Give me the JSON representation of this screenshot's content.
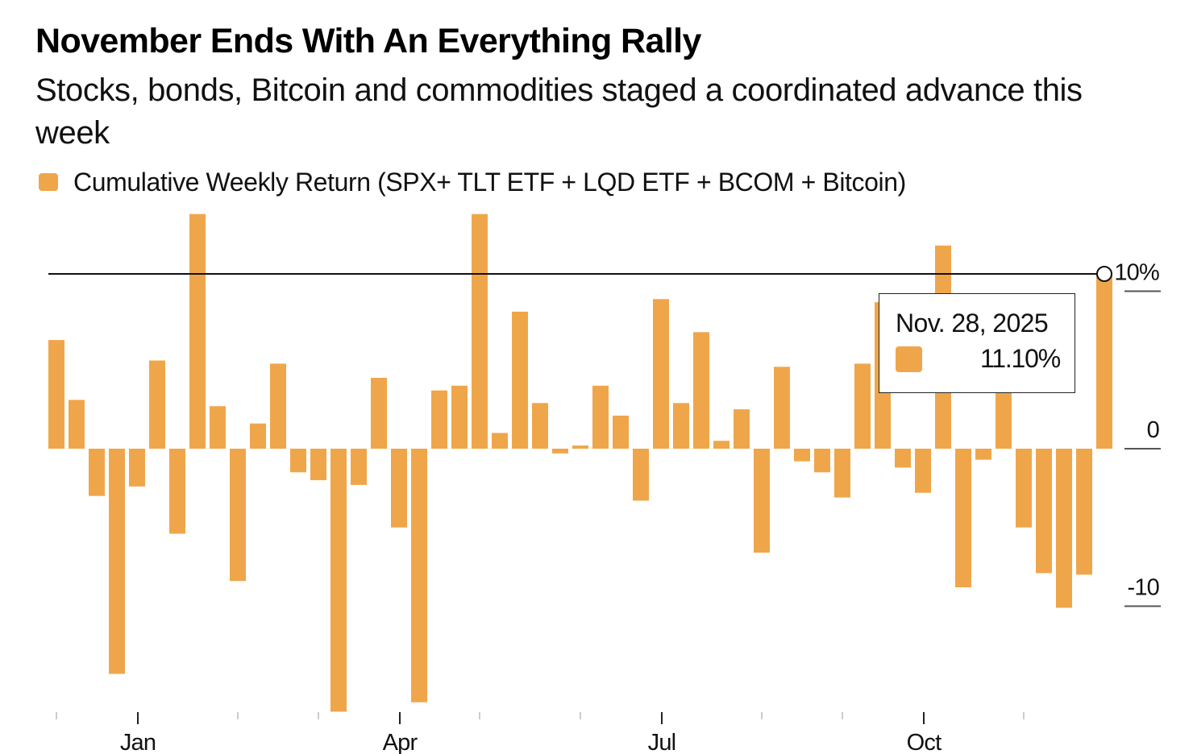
{
  "colors": {
    "bar": "#EFA64A",
    "reference_line": "#111111",
    "axis": "#222222",
    "minor_tick": "#bbbbbb"
  },
  "chart_data": {
    "type": "bar",
    "title": "November Ends With An Everything Rally",
    "subtitle": "Stocks, bonds, Bitcoin and commodities staged a coordinated advance this week",
    "legend": [
      {
        "name": "Cumulative Weekly Return (SPX+ TLT ETF + LQD ETF + BCOM + Bitcoin)",
        "color": "#EFA64A"
      }
    ],
    "legend_position": "top-left",
    "xlabel": "",
    "ylabel": "",
    "y_unit": "%",
    "ylim": [
      -16.8,
      15.0
    ],
    "y_ticks": [
      {
        "value": 10,
        "label": "10%"
      },
      {
        "value": 0,
        "label": "0"
      },
      {
        "value": -10,
        "label": "-10"
      }
    ],
    "x_ticks_major": [
      {
        "bar_index": 4,
        "label": "Jan"
      },
      {
        "bar_index": 17,
        "label": "Apr"
      },
      {
        "bar_index": 30,
        "label": "Jul"
      },
      {
        "bar_index": 43,
        "label": "Oct"
      }
    ],
    "x_ticks_minor_bar_index": [
      0,
      9,
      13,
      21,
      26,
      35,
      39,
      48
    ],
    "grid": false,
    "series": [
      {
        "name": "Cumulative Weekly Return",
        "values": [
          6.9,
          3.1,
          -3.0,
          -14.3,
          -2.4,
          5.6,
          -5.4,
          14.9,
          2.7,
          -8.4,
          1.6,
          5.4,
          -1.5,
          -2.0,
          -16.7,
          -2.3,
          4.5,
          -5.0,
          -16.1,
          3.7,
          4.0,
          14.9,
          1.0,
          8.7,
          2.9,
          -0.3,
          0.2,
          4.0,
          2.1,
          -3.3,
          9.5,
          2.9,
          7.4,
          0.5,
          2.5,
          -6.6,
          5.2,
          -0.8,
          -1.5,
          -3.1,
          5.4,
          9.3,
          -1.2,
          -2.8,
          12.9,
          -8.8,
          -0.7,
          5.0,
          -5.0,
          -7.9,
          -10.1,
          -8.0,
          11.1
        ]
      }
    ],
    "annotations": [
      {
        "type": "horizontal_reference_line",
        "value": 11.1,
        "marker": "hollow-circle-at-last-bar"
      }
    ],
    "tooltip": {
      "date": "Nov. 28, 2025",
      "value": "11.10%"
    }
  }
}
